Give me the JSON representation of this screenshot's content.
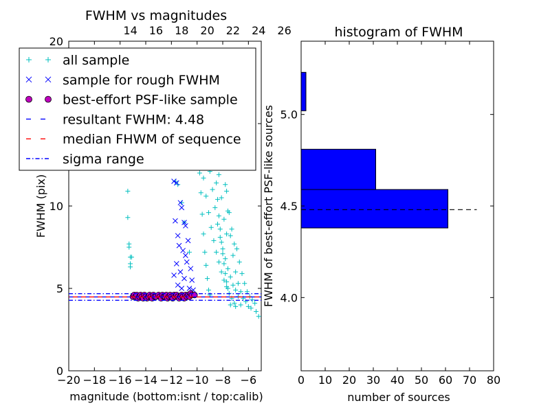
{
  "chart_data": [
    {
      "type": "scatter",
      "title": "FWHM vs magnitudes",
      "xlabel": "magnitude (bottom:isnt / top:calib)",
      "ylabel": "FWHM (pix)",
      "xlim": [
        -20,
        -5
      ],
      "ylim": [
        0,
        20
      ],
      "x_ticks": [
        -20,
        -18,
        -16,
        -14,
        -12,
        -10,
        -8,
        -6
      ],
      "x_tick_labels": [
        "−20",
        "−18",
        "−16",
        "−14",
        "−12",
        "−10",
        "−8",
        "−6"
      ],
      "y_ticks": [
        0,
        5,
        10,
        15,
        20
      ],
      "y_tick_labels": [
        "0",
        "5",
        "10",
        "15",
        "20"
      ],
      "top_x_ticks": [
        14,
        16,
        18,
        20,
        22,
        24,
        26
      ],
      "top_x_tick_labels": [
        "14",
        "16",
        "18",
        "20",
        "22",
        "24",
        "26"
      ],
      "top_offset": 29.2,
      "grid": false,
      "legend_position": "top-left",
      "series": [
        {
          "name": "all sample",
          "marker": "plus",
          "color": "#00bfbf",
          "points": [
            [
              -15.4,
              10.9
            ],
            [
              -15.4,
              9.3
            ],
            [
              -15.3,
              7.7
            ],
            [
              -15.3,
              7.5
            ],
            [
              -15.2,
              6.9
            ],
            [
              -15.2,
              6.5
            ],
            [
              -15.2,
              6.3
            ],
            [
              -15.1,
              6.9
            ],
            [
              -11.7,
              11.5
            ],
            [
              -11.5,
              11.3
            ],
            [
              -11.2,
              10.2
            ],
            [
              -11.0,
              9.0
            ],
            [
              -10.6,
              7.2
            ],
            [
              -10.3,
              19.1
            ],
            [
              -10.1,
              16.2
            ],
            [
              -10.0,
              15.0
            ],
            [
              -9.9,
              13.4
            ],
            [
              -9.8,
              12.0
            ],
            [
              -9.7,
              10.8
            ],
            [
              -9.6,
              9.5
            ],
            [
              -9.5,
              8.3
            ],
            [
              -9.4,
              7.2
            ],
            [
              -9.3,
              6.4
            ],
            [
              -9.2,
              5.6
            ],
            [
              -9.1,
              4.9
            ],
            [
              -9.0,
              4.6
            ],
            [
              -8.9,
              17.8
            ],
            [
              -8.8,
              15.6
            ],
            [
              -8.7,
              14.0
            ],
            [
              -8.6,
              12.6
            ],
            [
              -8.5,
              11.4
            ],
            [
              -8.4,
              10.4
            ],
            [
              -8.3,
              9.4
            ],
            [
              -8.2,
              8.6
            ],
            [
              -8.1,
              7.8
            ],
            [
              -8.0,
              7.1
            ],
            [
              -7.9,
              6.5
            ],
            [
              -7.8,
              5.9
            ],
            [
              -7.7,
              5.4
            ],
            [
              -7.6,
              5.0
            ],
            [
              -8.8,
              19.4
            ],
            [
              -8.6,
              18.7
            ],
            [
              -8.4,
              16.9
            ],
            [
              -8.2,
              15.2
            ],
            [
              -8.0,
              13.1
            ],
            [
              -7.8,
              11.3
            ],
            [
              -7.6,
              9.7
            ],
            [
              -7.4,
              8.2
            ],
            [
              -7.2,
              7.0
            ],
            [
              -7.0,
              6.0
            ],
            [
              -6.8,
              5.3
            ],
            [
              -6.6,
              4.8
            ],
            [
              -6.4,
              4.4
            ],
            [
              -6.2,
              4.2
            ],
            [
              -9.4,
              14.9
            ],
            [
              -9.2,
              13.3
            ],
            [
              -9.0,
              12.1
            ],
            [
              -8.8,
              11.0
            ],
            [
              -8.6,
              9.9
            ],
            [
              -8.4,
              8.9
            ],
            [
              -8.2,
              8.1
            ],
            [
              -8.0,
              7.4
            ],
            [
              -7.8,
              6.8
            ],
            [
              -7.6,
              6.2
            ],
            [
              -7.4,
              5.7
            ],
            [
              -7.2,
              5.2
            ],
            [
              -7.0,
              4.9
            ],
            [
              -6.8,
              4.5
            ],
            [
              -9.7,
              12.9
            ],
            [
              -9.5,
              11.7
            ],
            [
              -9.3,
              10.6
            ],
            [
              -9.1,
              9.6
            ],
            [
              -8.9,
              8.7
            ],
            [
              -8.7,
              7.9
            ],
            [
              -8.5,
              7.2
            ],
            [
              -8.3,
              6.6
            ],
            [
              -8.1,
              6.0
            ],
            [
              -7.9,
              5.5
            ],
            [
              -7.7,
              5.1
            ],
            [
              -7.5,
              4.7
            ],
            [
              -7.3,
              4.4
            ],
            [
              -7.1,
              4.1
            ],
            [
              -6.9,
              7.4
            ],
            [
              -6.7,
              6.6
            ],
            [
              -6.5,
              5.9
            ],
            [
              -6.3,
              5.3
            ],
            [
              -6.1,
              4.8
            ],
            [
              -5.9,
              4.5
            ],
            [
              -5.7,
              4.3
            ],
            [
              -5.5,
              4.1
            ],
            [
              -5.2,
              3.3
            ],
            [
              -5.4,
              3.6
            ],
            [
              -5.8,
              3.8
            ],
            [
              -6.0,
              3.9
            ],
            [
              -6.6,
              4.0
            ],
            [
              -7.0,
              3.9
            ],
            [
              -7.4,
              4.0
            ],
            [
              -8.1,
              13.8
            ],
            [
              -7.9,
              12.3
            ],
            [
              -7.7,
              10.9
            ],
            [
              -7.5,
              9.6
            ],
            [
              -7.3,
              8.6
            ],
            [
              -7.1,
              7.7
            ],
            [
              -9.0,
              15.7
            ],
            [
              -8.7,
              13.4
            ],
            [
              -8.3,
              11.9
            ],
            [
              -8.1,
              10.5
            ],
            [
              -7.9,
              9.2
            ],
            [
              -7.7,
              8.3
            ]
          ]
        },
        {
          "name": "sample for rough FWHM",
          "marker": "x",
          "color": "#0000ff",
          "points": [
            [
              -11.8,
              11.5
            ],
            [
              -11.6,
              11.4
            ],
            [
              -11.3,
              10.2
            ],
            [
              -11.2,
              9.9
            ],
            [
              -11.0,
              9.0
            ],
            [
              -10.9,
              8.8
            ],
            [
              -11.7,
              9.1
            ],
            [
              -11.5,
              8.2
            ],
            [
              -11.4,
              7.6
            ],
            [
              -11.1,
              7.3
            ],
            [
              -10.9,
              7.0
            ],
            [
              -10.8,
              6.6
            ],
            [
              -11.8,
              5.8
            ],
            [
              -11.5,
              5.2
            ],
            [
              -11.2,
              5.0
            ],
            [
              -10.7,
              7.9
            ],
            [
              -10.5,
              6.2
            ],
            [
              -10.4,
              5.5
            ],
            [
              -11.6,
              6.5
            ],
            [
              -11.3,
              6.0
            ],
            [
              -11.0,
              5.6
            ],
            [
              -10.6,
              5.0
            ],
            [
              -10.3,
              4.9
            ]
          ]
        },
        {
          "name": "best-effort PSF-like sample",
          "marker": "circle",
          "color": "#bf00bf",
          "points": [
            [
              -15.0,
              4.5
            ],
            [
              -14.9,
              4.6
            ],
            [
              -14.8,
              4.5
            ],
            [
              -14.7,
              4.6
            ],
            [
              -14.6,
              4.4
            ],
            [
              -14.5,
              4.5
            ],
            [
              -14.4,
              4.6
            ],
            [
              -14.3,
              4.5
            ],
            [
              -14.2,
              4.4
            ],
            [
              -14.1,
              4.6
            ],
            [
              -14.0,
              4.5
            ],
            [
              -13.9,
              4.4
            ],
            [
              -13.8,
              4.5
            ],
            [
              -13.7,
              4.6
            ],
            [
              -13.6,
              4.5
            ],
            [
              -13.5,
              4.4
            ],
            [
              -13.4,
              4.6
            ],
            [
              -13.3,
              4.5
            ],
            [
              -13.2,
              4.5
            ],
            [
              -13.0,
              4.6
            ],
            [
              -12.9,
              4.5
            ],
            [
              -12.8,
              4.4
            ],
            [
              -12.7,
              4.6
            ],
            [
              -12.6,
              4.5
            ],
            [
              -12.5,
              4.5
            ],
            [
              -12.4,
              4.6
            ],
            [
              -12.3,
              4.4
            ],
            [
              -12.2,
              4.5
            ],
            [
              -12.1,
              4.6
            ],
            [
              -12.0,
              4.5
            ],
            [
              -11.9,
              4.4
            ],
            [
              -11.8,
              4.6
            ],
            [
              -11.7,
              4.5
            ],
            [
              -11.6,
              4.6
            ],
            [
              -11.5,
              4.5
            ],
            [
              -11.4,
              4.4
            ],
            [
              -11.3,
              4.5
            ],
            [
              -11.2,
              4.6
            ],
            [
              -11.1,
              4.5
            ],
            [
              -11.0,
              4.4
            ],
            [
              -10.9,
              4.6
            ],
            [
              -10.8,
              4.5
            ],
            [
              -10.7,
              4.6
            ],
            [
              -10.6,
              4.5
            ],
            [
              -10.5,
              4.7
            ],
            [
              -10.4,
              4.6
            ],
            [
              -10.2,
              4.6
            ]
          ]
        }
      ],
      "lines": [
        {
          "name": "resultant FWHM: 4.48",
          "y": 4.48,
          "style": "dashed",
          "color": "#0000ff"
        },
        {
          "name": "median FHWM of sequence",
          "y": 4.48,
          "style": "dashed",
          "color": "#ff0000"
        },
        {
          "name": "sigma range",
          "y": [
            4.28,
            4.68
          ],
          "style": "dashdot",
          "color": "#0000ff"
        }
      ]
    },
    {
      "type": "bar",
      "orientation": "horizontal",
      "title": "histogram of FWHM",
      "xlabel": "number of sources",
      "ylabel": "FWHM of best-effort PSF-like sources",
      "xlim": [
        0,
        80
      ],
      "ylim": [
        3.6,
        5.4
      ],
      "x_ticks": [
        0,
        10,
        20,
        30,
        40,
        50,
        60,
        70,
        80
      ],
      "y_ticks": [
        4.0,
        4.5,
        5.0
      ],
      "y_tick_labels": [
        "4.0",
        "4.5",
        "5.0"
      ],
      "color": "#0000ff",
      "bins": [
        {
          "y0": 4.38,
          "y1": 4.59,
          "count": 61
        },
        {
          "y0": 4.59,
          "y1": 4.81,
          "count": 31
        },
        {
          "y0": 5.02,
          "y1": 5.23,
          "count": 2
        }
      ],
      "reference_line": {
        "y": 4.48,
        "x_end": 73,
        "style": "dashed",
        "color": "#000000"
      }
    }
  ]
}
